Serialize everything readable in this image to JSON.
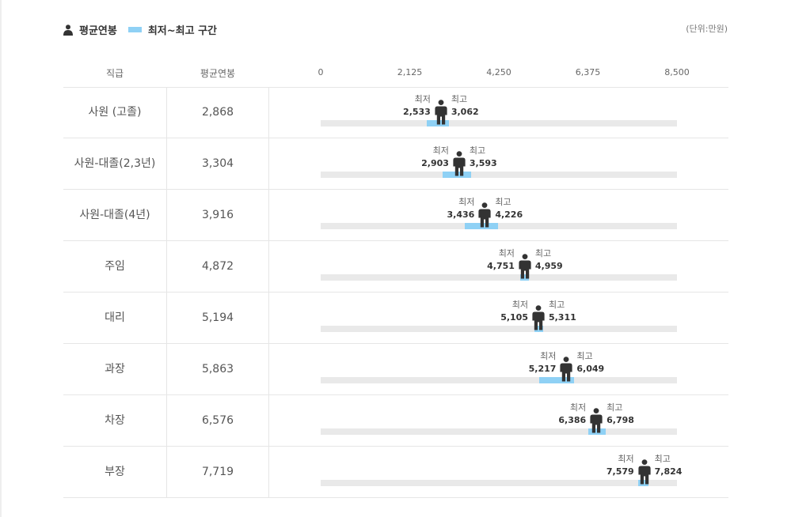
{
  "legend": {
    "avg_label": "평균연봉",
    "range_label": "최저~최고 구간"
  },
  "unit": "(단위:만원)",
  "headers": {
    "position": "직급",
    "avg_salary": "평균연봉"
  },
  "colors": {
    "range": "#8fd1f5",
    "track": "#e9e9e9",
    "figure": "#333333"
  },
  "icons": {
    "legend": "person-icon",
    "marker": "person-icon"
  },
  "captions": {
    "min": "최저",
    "max": "최고"
  },
  "chart_data": {
    "type": "bar",
    "xlim": [
      0,
      8500
    ],
    "ticks": [
      "0",
      "2,125",
      "4,250",
      "6,375",
      "8,500"
    ],
    "rows": [
      {
        "label": "사원 (고졸)",
        "avg": 2868,
        "avg_text": "2,868",
        "min": 2533,
        "min_text": "2,533",
        "max": 3062,
        "max_text": "3,062"
      },
      {
        "label": "사원-대졸(2,3년)",
        "avg": 3304,
        "avg_text": "3,304",
        "min": 2903,
        "min_text": "2,903",
        "max": 3593,
        "max_text": "3,593"
      },
      {
        "label": "사원-대졸(4년)",
        "avg": 3916,
        "avg_text": "3,916",
        "min": 3436,
        "min_text": "3,436",
        "max": 4226,
        "max_text": "4,226"
      },
      {
        "label": "주임",
        "avg": 4872,
        "avg_text": "4,872",
        "min": 4751,
        "min_text": "4,751",
        "max": 4959,
        "max_text": "4,959"
      },
      {
        "label": "대리",
        "avg": 5194,
        "avg_text": "5,194",
        "min": 5105,
        "min_text": "5,105",
        "max": 5311,
        "max_text": "5,311"
      },
      {
        "label": "과장",
        "avg": 5863,
        "avg_text": "5,863",
        "min": 5217,
        "min_text": "5,217",
        "max": 6049,
        "max_text": "6,049"
      },
      {
        "label": "차장",
        "avg": 6576,
        "avg_text": "6,576",
        "min": 6386,
        "min_text": "6,386",
        "max": 6798,
        "max_text": "6,798"
      },
      {
        "label": "부장",
        "avg": 7719,
        "avg_text": "7,719",
        "min": 7579,
        "min_text": "7,579",
        "max": 7824,
        "max_text": "7,824"
      }
    ]
  }
}
